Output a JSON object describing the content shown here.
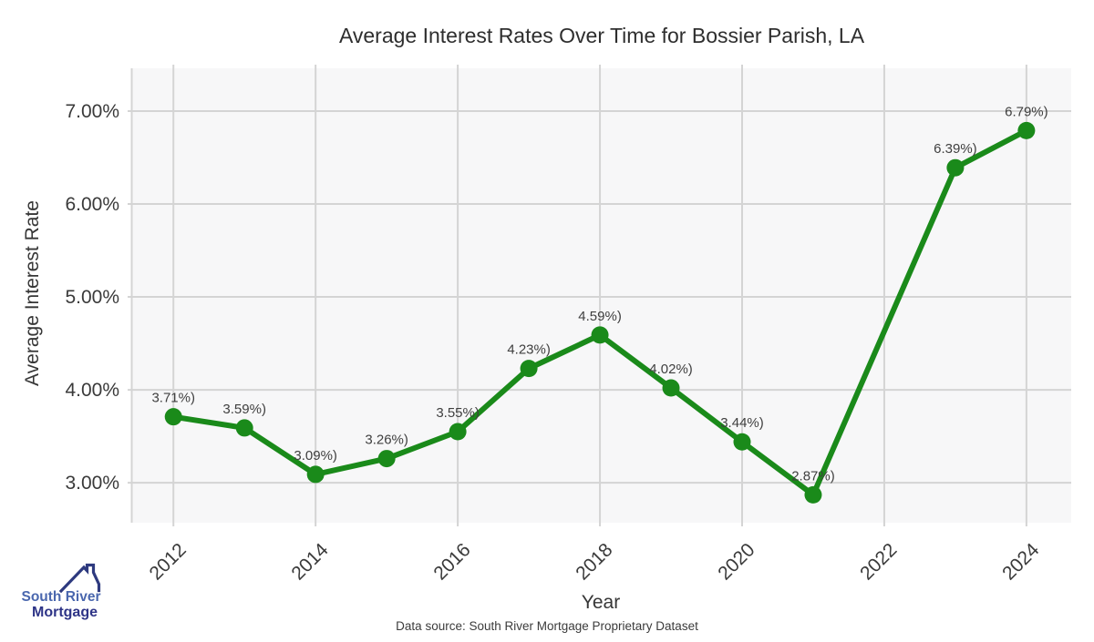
{
  "chart_data": {
    "type": "line",
    "title": "Average Interest Rates Over Time for Bossier Parish, LA",
    "xlabel": "Year",
    "ylabel": "Average Interest Rate",
    "x": [
      2012,
      2013,
      2014,
      2015,
      2016,
      2017,
      2018,
      2019,
      2020,
      2021,
      2023,
      2024
    ],
    "values": [
      3.71,
      3.59,
      3.09,
      3.26,
      3.55,
      4.23,
      4.59,
      4.02,
      3.44,
      2.87,
      6.39,
      6.79
    ],
    "point_labels": [
      "3.71%)",
      "3.59%)",
      "3.09%)",
      "3.26%)",
      "3.55%)",
      "4.23%)",
      "4.59%)",
      "4.02%)",
      "3.44%)",
      "2.87%)",
      "6.39%)",
      "6.79%)"
    ],
    "x_ticks": [
      2012,
      2014,
      2016,
      2018,
      2020,
      2022,
      2024
    ],
    "x_tick_labels": [
      "2012",
      "2014",
      "2016",
      "2018",
      "2020",
      "2022",
      "2024"
    ],
    "y_ticks": [
      3,
      4,
      5,
      6,
      7
    ],
    "y_tick_labels": [
      "3.00%",
      "4.00%",
      "5.00%",
      "6.00%",
      "7.00%"
    ],
    "xlim": [
      2011.42,
      2024.63
    ],
    "ylim": [
      2.57,
      7.46
    ],
    "grid": true,
    "legend": false
  },
  "colors": {
    "line": "#1a8a1a",
    "marker": "#1a8a1a",
    "plot_bg": "#f7f7f8",
    "grid": "#d4d4d4",
    "figure_bg": "#ffffff"
  },
  "footer": {
    "source": "Data source: South River Mortgage Proprietary Dataset"
  },
  "branding": {
    "line1": "South River",
    "line2": "Mortgage",
    "color1": "#4a67ae",
    "color2": "#2e3487",
    "roof_color": "#2e3a7f"
  }
}
